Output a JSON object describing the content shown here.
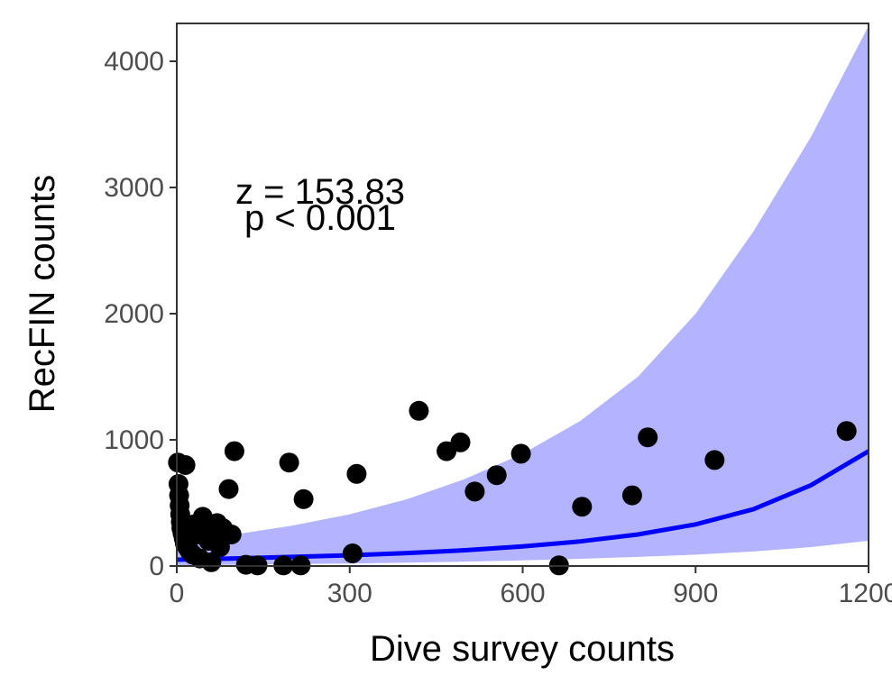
{
  "chart_data": {
    "type": "scatter",
    "xlabel": "Dive survey counts",
    "ylabel": "RecFIN counts",
    "xlim": [
      0,
      1200
    ],
    "ylim": [
      0,
      4300
    ],
    "x_ticks": [
      0,
      300,
      600,
      900,
      1200
    ],
    "x_tick_labels": [
      "0",
      "300",
      "600",
      "900",
      "1200"
    ],
    "y_ticks": [
      0,
      1000,
      2000,
      3000,
      4000
    ],
    "y_tick_labels": [
      "0",
      "1000",
      "2000",
      "3000",
      "4000"
    ],
    "annotations": [
      "z = 153.83",
      "p < 0.001"
    ],
    "grid": false,
    "colors": {
      "points": "#000000",
      "fit_line": "#0000ff",
      "ribbon": "#b3b3ff",
      "panel_border": "#333333"
    },
    "points": [
      {
        "x": 2,
        "y": 820
      },
      {
        "x": 3,
        "y": 650
      },
      {
        "x": 4,
        "y": 560
      },
      {
        "x": 5,
        "y": 480
      },
      {
        "x": 6,
        "y": 410
      },
      {
        "x": 7,
        "y": 350
      },
      {
        "x": 8,
        "y": 300
      },
      {
        "x": 10,
        "y": 260
      },
      {
        "x": 12,
        "y": 220
      },
      {
        "x": 14,
        "y": 180
      },
      {
        "x": 15,
        "y": 800
      },
      {
        "x": 18,
        "y": 150
      },
      {
        "x": 20,
        "y": 310
      },
      {
        "x": 22,
        "y": 120
      },
      {
        "x": 25,
        "y": 280
      },
      {
        "x": 28,
        "y": 90
      },
      {
        "x": 30,
        "y": 330
      },
      {
        "x": 35,
        "y": 250
      },
      {
        "x": 40,
        "y": 60
      },
      {
        "x": 45,
        "y": 390
      },
      {
        "x": 50,
        "y": 300
      },
      {
        "x": 55,
        "y": 200
      },
      {
        "x": 60,
        "y": 30
      },
      {
        "x": 65,
        "y": 270
      },
      {
        "x": 70,
        "y": 340
      },
      {
        "x": 75,
        "y": 150
      },
      {
        "x": 80,
        "y": 300
      },
      {
        "x": 90,
        "y": 610
      },
      {
        "x": 95,
        "y": 250
      },
      {
        "x": 100,
        "y": 910
      },
      {
        "x": 120,
        "y": 10
      },
      {
        "x": 140,
        "y": 5
      },
      {
        "x": 185,
        "y": 5
      },
      {
        "x": 195,
        "y": 820
      },
      {
        "x": 215,
        "y": 5
      },
      {
        "x": 220,
        "y": 530
      },
      {
        "x": 305,
        "y": 100
      },
      {
        "x": 312,
        "y": 730
      },
      {
        "x": 420,
        "y": 1230
      },
      {
        "x": 468,
        "y": 910
      },
      {
        "x": 492,
        "y": 980
      },
      {
        "x": 517,
        "y": 590
      },
      {
        "x": 555,
        "y": 720
      },
      {
        "x": 597,
        "y": 890
      },
      {
        "x": 663,
        "y": 5
      },
      {
        "x": 703,
        "y": 470
      },
      {
        "x": 790,
        "y": 560
      },
      {
        "x": 817,
        "y": 1020
      },
      {
        "x": 933,
        "y": 840
      },
      {
        "x": 1162,
        "y": 1070
      }
    ],
    "fit": {
      "x": [
        0,
        100,
        200,
        300,
        400,
        500,
        600,
        700,
        800,
        900,
        1000,
        1100,
        1200
      ],
      "y": [
        50,
        60,
        72,
        85,
        103,
        125,
        155,
        195,
        250,
        330,
        450,
        640,
        910
      ]
    },
    "ribbon": {
      "x": [
        0,
        100,
        200,
        300,
        400,
        500,
        600,
        700,
        800,
        900,
        1000,
        1100,
        1200
      ],
      "lower": [
        5,
        10,
        15,
        20,
        27,
        35,
        45,
        57,
        72,
        90,
        115,
        150,
        200
      ],
      "upper": [
        200,
        250,
        320,
        410,
        530,
        690,
        890,
        1150,
        1500,
        2000,
        2650,
        3400,
        4280
      ]
    }
  }
}
